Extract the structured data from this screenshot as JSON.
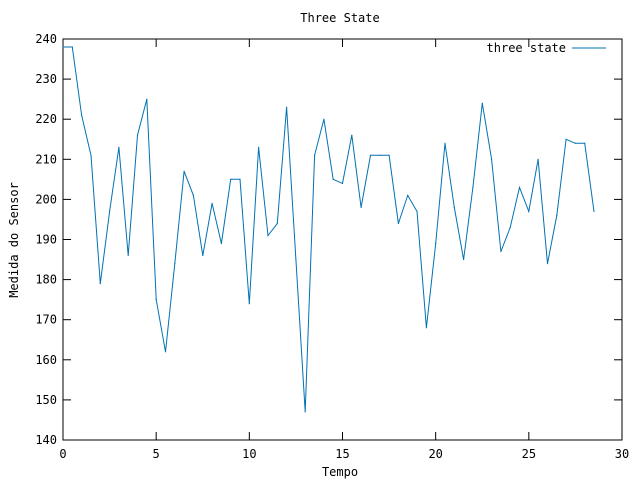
{
  "chart_data": {
    "type": "line",
    "title": "Three State",
    "xlabel": "Tempo",
    "ylabel": "Medida do Sensor",
    "xlim": [
      0,
      30
    ],
    "ylim": [
      140,
      240
    ],
    "xticks": [
      0,
      5,
      10,
      15,
      20,
      25,
      30
    ],
    "yticks": [
      140,
      150,
      160,
      170,
      180,
      190,
      200,
      210,
      220,
      230,
      240
    ],
    "grid": false,
    "legend_position": "top-right",
    "series": [
      {
        "name": "three state",
        "color": "#0072b2",
        "x": [
          0,
          0.5,
          1,
          1.5,
          2,
          2.5,
          3,
          3.5,
          4,
          4.5,
          5,
          5.5,
          6,
          6.5,
          7,
          7.5,
          8,
          8.5,
          9,
          9.5,
          10,
          10.5,
          11,
          11.5,
          12,
          12.5,
          13,
          13.5,
          14,
          14.5,
          15,
          15.5,
          16,
          16.5,
          17,
          17.5,
          18,
          18.5,
          19,
          19.5,
          20,
          20.5,
          21,
          21.5,
          22,
          22.5,
          23,
          23.5,
          24,
          24.5,
          25,
          25.5,
          26,
          26.5,
          27,
          27.5,
          28,
          28.5
        ],
        "y": [
          238,
          238,
          221,
          211,
          179,
          197,
          213,
          186,
          216,
          225,
          175,
          162,
          184,
          207,
          201,
          186,
          199,
          189,
          205,
          205,
          174,
          213,
          191,
          194,
          223,
          185,
          147,
          211,
          220,
          205,
          204,
          216,
          198,
          211,
          211,
          211,
          194,
          201,
          197,
          168,
          189,
          214,
          198,
          185,
          203,
          224,
          210,
          187,
          193,
          203,
          197,
          210,
          184,
          196,
          215,
          214,
          214,
          197
        ]
      }
    ]
  }
}
